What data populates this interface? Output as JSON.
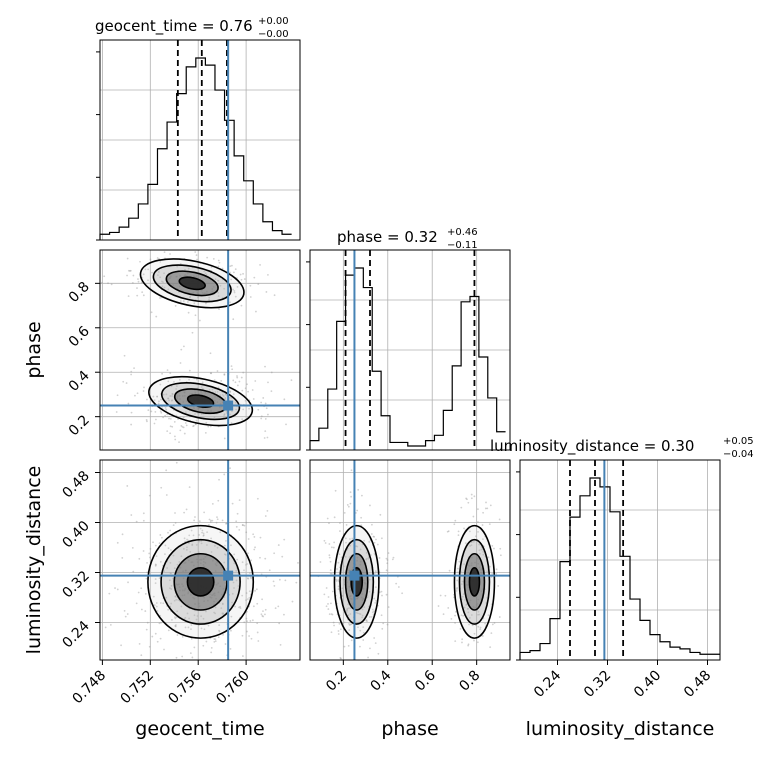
{
  "chart_data": {
    "type": "corner",
    "parameters": [
      "geocent_time",
      "phase",
      "luminosity_distance"
    ],
    "titles": [
      {
        "label": "geocent_time = 0.76",
        "plus": "+0.00",
        "minus": "−0.00"
      },
      {
        "label": "phase = 0.32",
        "plus": "+0.46",
        "minus": "−0.11"
      },
      {
        "label": "luminosity_distance = 0.30",
        "plus": "+0.05",
        "minus": "−0.04"
      }
    ],
    "ranges": {
      "geocent_time": [
        0.7478,
        0.7645
      ],
      "phase": [
        0.05,
        0.95
      ],
      "luminosity_distance": [
        0.18,
        0.5
      ]
    },
    "ticks": {
      "geocent_time": [
        "0.748",
        "0.752",
        "0.756",
        "0.760"
      ],
      "phase_x": [
        "0.2",
        "0.4",
        "0.6",
        "0.8"
      ],
      "phase_y": [
        "0.2",
        "0.4",
        "0.6",
        "0.8"
      ],
      "luminosity_distance_x": [
        "0.24",
        "0.32",
        "0.40",
        "0.48"
      ],
      "luminosity_distance_y": [
        "0.24",
        "0.32",
        "0.40",
        "0.48"
      ]
    },
    "truths": {
      "geocent_time": 0.7585,
      "phase": 0.25,
      "luminosity_distance": 0.315
    },
    "quantiles": {
      "geocent_time": [
        0.7543,
        0.7563,
        0.7584
      ],
      "phase": [
        0.21,
        0.32,
        0.79
      ],
      "luminosity_distance": [
        0.26,
        0.3,
        0.345
      ]
    },
    "histograms": {
      "geocent_time": {
        "edges": [
          0.7478,
          0.7486,
          0.7494,
          0.7502,
          0.751,
          0.7518,
          0.7526,
          0.7534,
          0.7542,
          0.755,
          0.7558,
          0.7566,
          0.7574,
          0.7582,
          0.759,
          0.7598,
          0.7606,
          0.7614,
          0.7622,
          0.763,
          0.7638
        ],
        "counts": [
          1,
          2,
          5,
          10,
          18,
          29,
          49,
          64,
          80,
          95,
          100,
          96,
          82,
          65,
          45,
          31,
          18,
          8,
          3,
          1
        ]
      },
      "phase": {
        "edges": [
          0.05,
          0.09,
          0.13,
          0.17,
          0.21,
          0.25,
          0.29,
          0.33,
          0.37,
          0.41,
          0.45,
          0.49,
          0.53,
          0.57,
          0.61,
          0.65,
          0.69,
          0.73,
          0.77,
          0.81,
          0.85,
          0.89,
          0.93
        ],
        "counts": [
          3,
          10,
          32,
          70,
          96,
          100,
          89,
          42,
          17,
          2,
          2,
          0,
          0,
          3,
          6,
          20,
          45,
          81,
          84,
          50,
          27,
          8
        ]
      },
      "luminosity_distance": {
        "edges": [
          0.18,
          0.196,
          0.212,
          0.228,
          0.244,
          0.26,
          0.276,
          0.292,
          0.308,
          0.324,
          0.34,
          0.356,
          0.372,
          0.388,
          0.404,
          0.42,
          0.436,
          0.452,
          0.468,
          0.484,
          0.5
        ],
        "counts": [
          2,
          3,
          7,
          21,
          53,
          78,
          90,
          100,
          95,
          81,
          56,
          32,
          20,
          12,
          8,
          5,
          4,
          2,
          1,
          1
        ]
      }
    },
    "xlabels": [
      "geocent_time",
      "phase",
      "luminosity_distance"
    ],
    "ylabels": [
      "phase",
      "luminosity_distance"
    ],
    "grid": true
  }
}
